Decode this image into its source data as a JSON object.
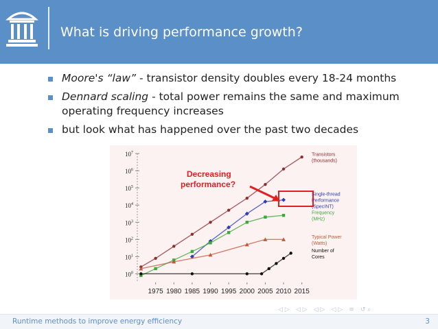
{
  "slide": {
    "title": "What is driving performance growth?",
    "bullets": [
      {
        "em": "Moore's “law”",
        "text": " - transistor density doubles every 18-24 months"
      },
      {
        "em": "Dennard scaling",
        "text": " - total power remains the same and maximum operating frequency increases"
      },
      {
        "em": "",
        "text": "but look what has happened over the past two decades"
      }
    ]
  },
  "footer": {
    "text": "Runtime methods to improve energy efficiency",
    "page": "3"
  },
  "colors": {
    "header": "#5b8fc8",
    "transistors": "#8b2f2f",
    "single_thread": "#2b3fb0",
    "frequency": "#3ca83c",
    "power": "#c05a3a",
    "cores": "#111111",
    "annotation": "#e02020"
  },
  "chart_data": {
    "type": "scatter",
    "title": "",
    "xlabel": "",
    "ylabel": "",
    "x_ticks": [
      1975,
      1980,
      1985,
      1990,
      1995,
      2000,
      2005,
      2010,
      2015
    ],
    "y_ticks": [
      "10^0",
      "10^1",
      "10^2",
      "10^3",
      "10^4",
      "10^5",
      "10^6",
      "10^7"
    ],
    "xlim": [
      1970,
      2016
    ],
    "ylim_log10": [
      -0.5,
      7
    ],
    "log_scale_y": true,
    "grid": false,
    "legend_placement": "right",
    "annotation": {
      "text_line1": "Decreasing",
      "text_line2": "performance?"
    },
    "series": [
      {
        "name_lines": [
          "Transistors",
          "(thousands)"
        ],
        "x": [
          1971,
          1975,
          1980,
          1985,
          1990,
          1995,
          2000,
          2005,
          2010,
          2015
        ],
        "y_log10": [
          0.4,
          0.9,
          1.6,
          2.3,
          3.0,
          3.7,
          4.4,
          5.2,
          6.1,
          6.8
        ]
      },
      {
        "name_lines": [
          "Single-thread",
          "Performance",
          "(SpecINT)"
        ],
        "x": [
          1985,
          1990,
          1995,
          2000,
          2005,
          2010
        ],
        "y_log10": [
          1.0,
          1.9,
          2.7,
          3.5,
          4.2,
          4.3
        ]
      },
      {
        "name_lines": [
          "Frequency",
          "(MHz)"
        ],
        "x": [
          1971,
          1975,
          1980,
          1985,
          1990,
          1995,
          2000,
          2005,
          2010
        ],
        "y_log10": [
          -0.1,
          0.3,
          0.8,
          1.3,
          1.8,
          2.4,
          3.0,
          3.3,
          3.4
        ]
      },
      {
        "name_lines": [
          "Typical Power",
          "(Watts)"
        ],
        "x": [
          1971,
          1980,
          1990,
          2000,
          2005,
          2010
        ],
        "y_log10": [
          0.3,
          0.7,
          1.1,
          1.7,
          2.0,
          2.0
        ]
      },
      {
        "name_lines": [
          "Number of",
          "Cores"
        ],
        "x": [
          1971,
          1985,
          2000,
          2004,
          2006,
          2008,
          2010,
          2012
        ],
        "y_log10": [
          0.0,
          0.0,
          0.0,
          0.0,
          0.3,
          0.6,
          0.9,
          1.2
        ]
      }
    ]
  }
}
